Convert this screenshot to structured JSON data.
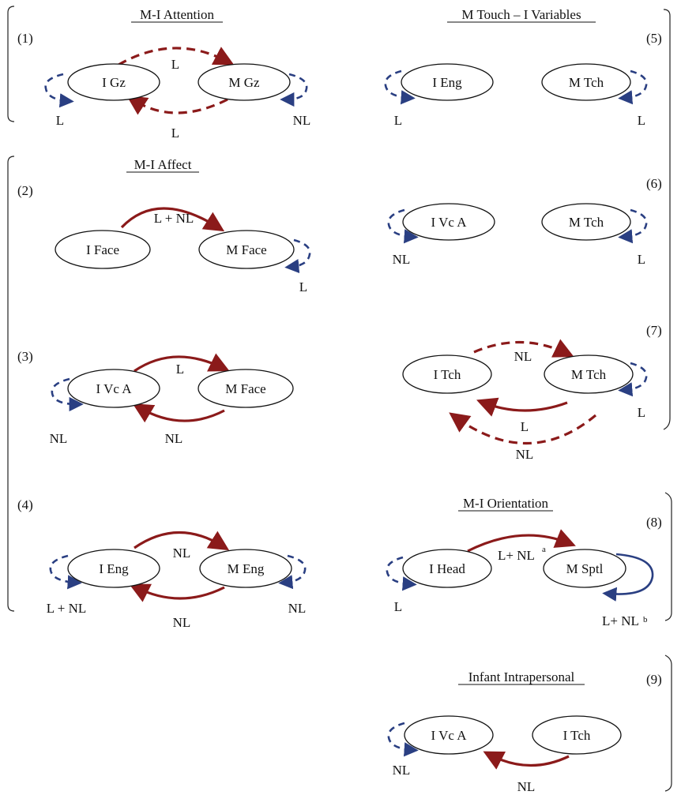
{
  "sections": {
    "attention": "M-I Attention",
    "touch": "M Touch – I Variables",
    "affect": "M-I Affect",
    "orientation": "M-I Orientation",
    "intrapersonal": "Infant Intrapersonal"
  },
  "numbers": [
    "(1)",
    "(2)",
    "(3)",
    "(4)",
    "(5)",
    "(6)",
    "(7)",
    "(8)",
    "(9)"
  ],
  "nodes": {
    "n1a": "I Gz",
    "n1b": "M Gz",
    "n2a": "I Face",
    "n2b": "M Face",
    "n3a": "I Vc A",
    "n3b": "M Face",
    "n4a": "I Eng",
    "n4b": "M Eng",
    "n5a": "I Eng",
    "n5b": "M Tch",
    "n6a": "I Vc A",
    "n6b": "M Tch",
    "n7a": "I Tch",
    "n7b": "M Tch",
    "n8a": "I Head",
    "n8b": "M Sptl",
    "n9a": "I Vc A",
    "n9b": "I Tch"
  },
  "labels": {
    "d1_top": "L",
    "d1_bottom": "L",
    "d1_left": "L",
    "d1_right": "NL",
    "d2_top": "L + NL",
    "d2_right": "L",
    "d3_top": "L",
    "d3_bottom": "NL",
    "d3_left": "NL",
    "d4_top": "NL",
    "d4_bottom": "NL",
    "d4_left": "L + NL",
    "d4_right": "NL",
    "d5_left": "L",
    "d5_right": "L",
    "d6_left": "NL",
    "d6_right": "L",
    "d7_top": "NL",
    "d7_mid": "L",
    "d7_bottom": "NL",
    "d7_right": "L",
    "d8_top": "L+ NL",
    "d8_top_sup": "a",
    "d8_left": "L",
    "d8_right": "L+ NL",
    "d8_right_sup": "b",
    "d9_left": "NL",
    "d9_bottom": "NL"
  },
  "colors": {
    "red_arrow": "#8b1a1a",
    "blue_arrow": "#2a3f82"
  },
  "legend_hint": "solid arrows and dashed arrows"
}
